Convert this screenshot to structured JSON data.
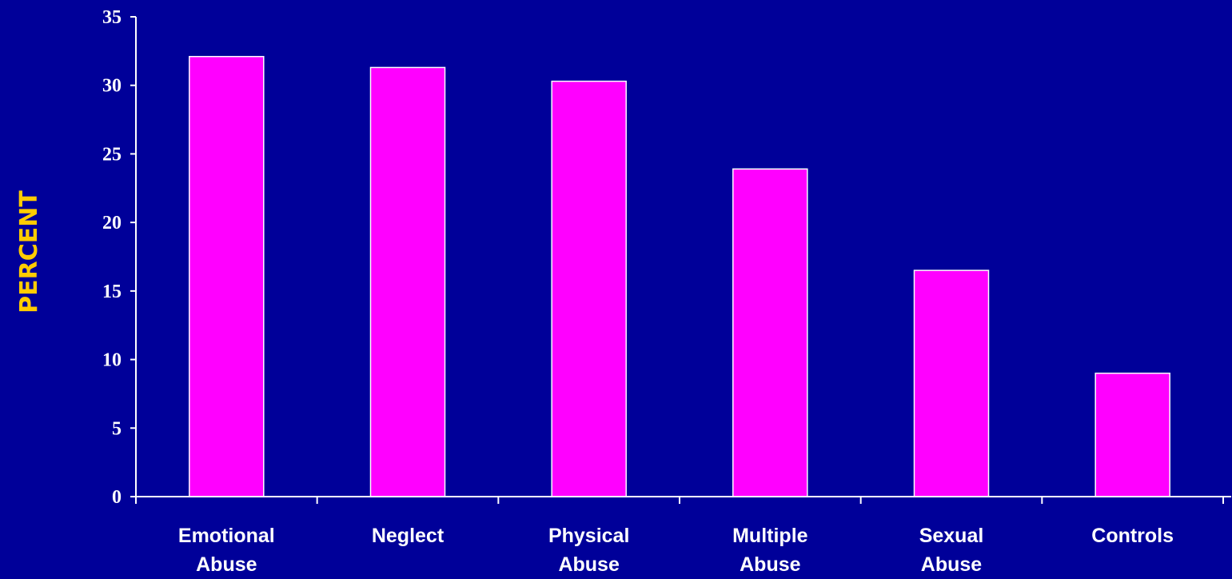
{
  "chart_data": {
    "type": "bar",
    "categories": [
      [
        "Emotional",
        "Abuse"
      ],
      [
        "Neglect"
      ],
      [
        "Physical",
        "Abuse"
      ],
      [
        "Multiple",
        "Abuse"
      ],
      [
        "Sexual",
        "Abuse"
      ],
      [
        "Controls"
      ]
    ],
    "values": [
      32.1,
      31.3,
      30.3,
      23.9,
      16.5,
      9.0
    ],
    "ylabel": "PERCENT",
    "ylim": [
      0,
      35
    ],
    "yticks": [
      "0",
      "5",
      "10",
      "15",
      "20",
      "25",
      "30",
      "35"
    ],
    "grid": false,
    "legend": "none"
  },
  "colors": {
    "background": "#000099",
    "bar_fill": "#ff00ff",
    "bar_stroke": "#ffffff",
    "axis": "#ffffff",
    "text": "#ffffff",
    "ylabel": "#ffcc00"
  }
}
